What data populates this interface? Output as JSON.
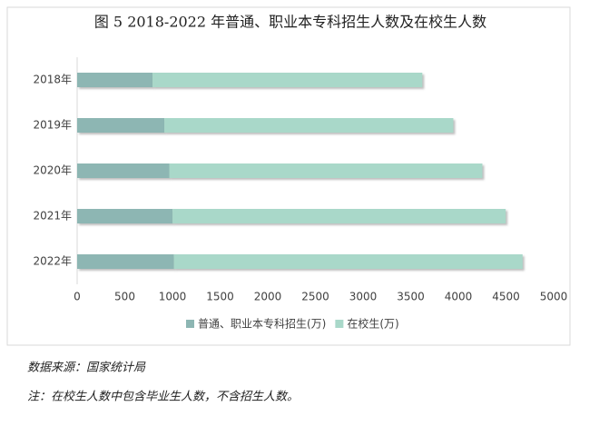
{
  "chart_data": {
    "type": "bar",
    "orientation": "horizontal",
    "stacked": true,
    "title": "图 5 2018-2022 年普通、职业本专科招生人数及在校生人数",
    "categories": [
      "2018年",
      "2019年",
      "2020年",
      "2021年",
      "2022年"
    ],
    "series": [
      {
        "name": "普通、职业本专科招生(万)",
        "color": "#8db6b3",
        "values": [
          791,
          915,
          967,
          1001,
          1015
        ]
      },
      {
        "name": "在校生(万)",
        "color": "#a9d8c9",
        "values": [
          2831,
          3032,
          3285,
          3496,
          3659
        ]
      }
    ],
    "xlim": [
      0,
      5000
    ],
    "xticks": [
      0,
      500,
      1000,
      1500,
      2000,
      2500,
      3000,
      3500,
      4000,
      4500,
      5000
    ],
    "grid": false,
    "legend": "bottom",
    "source": "数据来源：国家统计局",
    "note": "注：在校生人数中包含毕业生人数，不含招生人数。"
  }
}
